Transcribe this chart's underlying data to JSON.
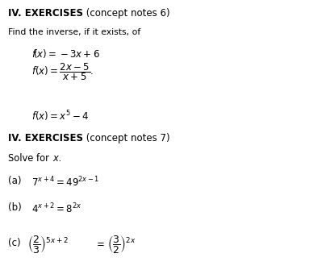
{
  "bg_color": "#ffffff",
  "figsize": [
    4.09,
    3.3
  ],
  "dpi": 100,
  "title1_bold": "IV. EXERCISES",
  "title1_normal": " (concept notes 6)",
  "find_text": "Find the inverse, if it exists, of",
  "fx1": "$\\mathit{f}$($x$) = -3$x$+6",
  "fx3": "$\\mathit{f}$($x$)=$x^5$−4",
  "title2_bold": "IV. EXERCISES",
  "title2_normal": " (concept notes 7)",
  "solve_text": "Solve for ",
  "a_label": "(a)",
  "b_label": "(b)",
  "c_label": "(c)"
}
